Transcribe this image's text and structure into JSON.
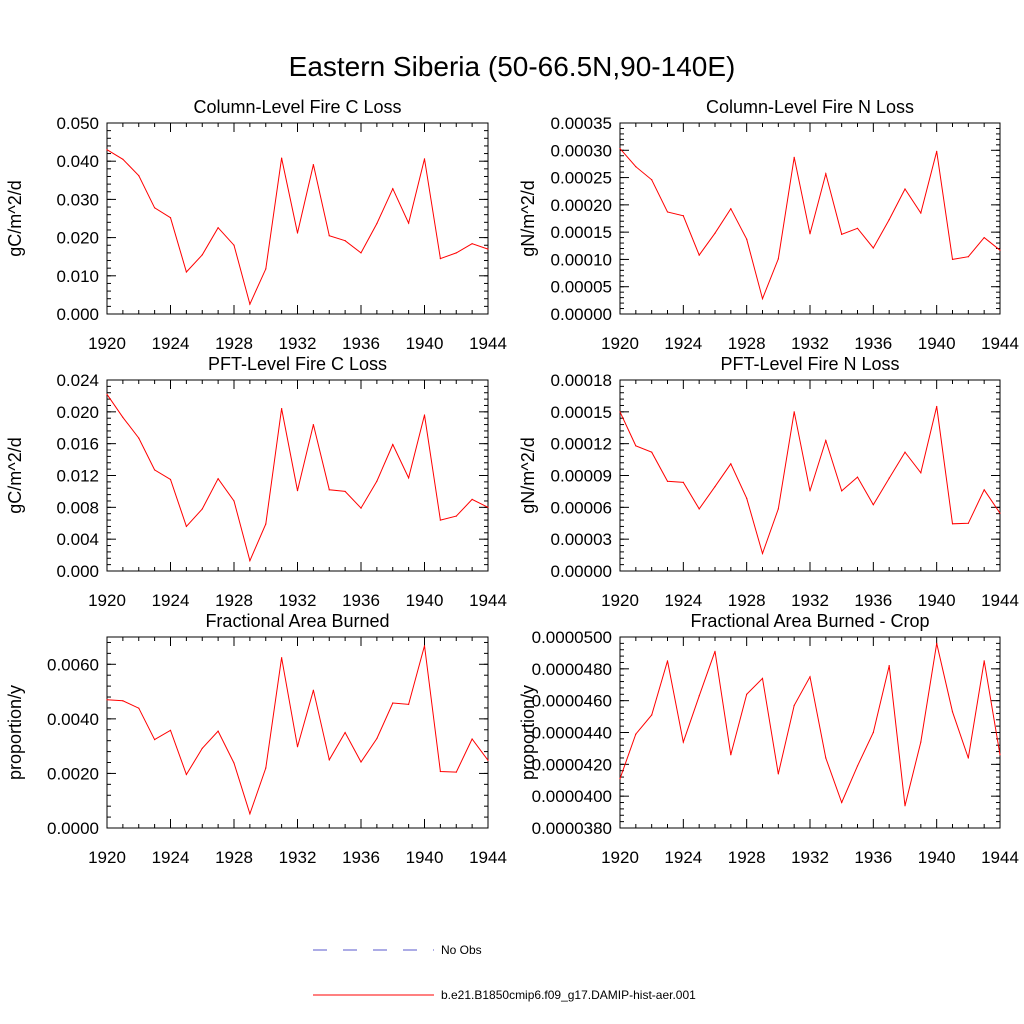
{
  "figure": {
    "title": "Eastern Siberia (50-66.5N,90-140E)"
  },
  "legend": {
    "placement": "bottom-center",
    "entries": [
      {
        "label": "No Obs",
        "color": "#5a5acd",
        "style": "dashed"
      },
      {
        "label": "b.e21.B1850cmip6.f09_g17.DAMIP-hist-aer.001",
        "color": "#ff0000",
        "style": "solid"
      }
    ]
  },
  "chart_data": [
    {
      "type": "line",
      "title": "Column-Level Fire C Loss",
      "ylabel": "gC/m^2/d",
      "xlim": [
        1920,
        1944
      ],
      "ylim": [
        0,
        0.05
      ],
      "xticks": [
        1920,
        1924,
        1928,
        1932,
        1936,
        1940,
        1944
      ],
      "yticks": [
        0,
        0.01,
        0.02,
        0.03,
        0.04,
        0.05
      ],
      "ytick_labels": [
        "0.000",
        "0.010",
        "0.020",
        "0.030",
        "0.040",
        "0.050"
      ],
      "color": "#ff0000",
      "x": [
        1920,
        1921,
        1922,
        1923,
        1924,
        1925,
        1926,
        1927,
        1928,
        1929,
        1930,
        1931,
        1932,
        1933,
        1934,
        1935,
        1936,
        1937,
        1938,
        1939,
        1940,
        1941,
        1942,
        1943,
        1944
      ],
      "values": [
        0.043,
        0.0405,
        0.0362,
        0.0278,
        0.0252,
        0.011,
        0.0155,
        0.0226,
        0.018,
        0.0026,
        0.0118,
        0.0408,
        0.0212,
        0.0391,
        0.0205,
        0.0192,
        0.016,
        0.0237,
        0.0328,
        0.0238,
        0.0406,
        0.0145,
        0.016,
        0.0184,
        0.017
      ]
    },
    {
      "type": "line",
      "title": "Column-Level Fire N Loss",
      "ylabel": "gN/m^2/d",
      "xlim": [
        1920,
        1944
      ],
      "ylim": [
        0,
        0.00035
      ],
      "xticks": [
        1920,
        1924,
        1928,
        1932,
        1936,
        1940,
        1944
      ],
      "yticks": [
        0,
        5e-05,
        0.0001,
        0.00015,
        0.0002,
        0.00025,
        0.0003,
        0.00035
      ],
      "ytick_labels": [
        "0.00000",
        "0.00005",
        "0.00010",
        "0.00015",
        "0.00020",
        "0.00025",
        "0.00030",
        "0.00035"
      ],
      "color": "#ff0000",
      "x": [
        1920,
        1921,
        1922,
        1923,
        1924,
        1925,
        1926,
        1927,
        1928,
        1929,
        1930,
        1931,
        1932,
        1933,
        1934,
        1935,
        1936,
        1937,
        1938,
        1939,
        1940,
        1941,
        1942,
        1943,
        1944
      ],
      "values": [
        0.000303,
        0.00027,
        0.000246,
        0.000187,
        0.00018,
        0.000108,
        0.000148,
        0.000193,
        0.000137,
        2.8e-05,
        0.000101,
        0.000287,
        0.000147,
        0.000257,
        0.000146,
        0.000157,
        0.000121,
        0.000173,
        0.000229,
        0.000185,
        0.000298,
        0.0001,
        0.000105,
        0.00014,
        0.000117
      ]
    },
    {
      "type": "line",
      "title": "PFT-Level Fire C Loss",
      "ylabel": "gC/m^2/d",
      "xlim": [
        1920,
        1944
      ],
      "ylim": [
        0,
        0.024
      ],
      "xticks": [
        1920,
        1924,
        1928,
        1932,
        1936,
        1940,
        1944
      ],
      "yticks": [
        0,
        0.004,
        0.008,
        0.012,
        0.016,
        0.02,
        0.024
      ],
      "ytick_labels": [
        "0.000",
        "0.004",
        "0.008",
        "0.012",
        "0.016",
        "0.020",
        "0.024"
      ],
      "color": "#ff0000",
      "x": [
        1920,
        1921,
        1922,
        1923,
        1924,
        1925,
        1926,
        1927,
        1928,
        1929,
        1930,
        1931,
        1932,
        1933,
        1934,
        1935,
        1936,
        1937,
        1938,
        1939,
        1940,
        1941,
        1942,
        1943,
        1944
      ],
      "values": [
        0.0222,
        0.0193,
        0.0167,
        0.0127,
        0.0115,
        0.0056,
        0.0078,
        0.0116,
        0.0088,
        0.0013,
        0.0059,
        0.0204,
        0.0101,
        0.0184,
        0.0102,
        0.01,
        0.0079,
        0.0113,
        0.0159,
        0.0117,
        0.0196,
        0.0064,
        0.0069,
        0.009,
        0.008
      ]
    },
    {
      "type": "line",
      "title": "PFT-Level Fire N Loss",
      "ylabel": "gN/m^2/d",
      "xlim": [
        1920,
        1944
      ],
      "ylim": [
        0,
        0.00018
      ],
      "xticks": [
        1920,
        1924,
        1928,
        1932,
        1936,
        1940,
        1944
      ],
      "yticks": [
        0,
        3e-05,
        6e-05,
        9e-05,
        0.00012,
        0.00015,
        0.00018
      ],
      "ytick_labels": [
        "0.00000",
        "0.00003",
        "0.00006",
        "0.00009",
        "0.00012",
        "0.00015",
        "0.00018"
      ],
      "color": "#ff0000",
      "x": [
        1920,
        1921,
        1922,
        1923,
        1924,
        1925,
        1926,
        1927,
        1928,
        1929,
        1930,
        1931,
        1932,
        1933,
        1934,
        1935,
        1936,
        1937,
        1938,
        1939,
        1940,
        1941,
        1942,
        1943,
        1944
      ],
      "values": [
        0.00015,
        0.000118,
        0.000112,
        8.45e-05,
        8.35e-05,
        5.85e-05,
        7.95e-05,
        0.000101,
        6.85e-05,
        1.65e-05,
        5.85e-05,
        0.00015,
        7.55e-05,
        0.000123,
        7.55e-05,
        8.85e-05,
        6.25e-05,
        8.75e-05,
        0.000112,
        9.25e-05,
        0.000155,
        4.45e-05,
        4.5e-05,
        7.65e-05,
        5.45e-05
      ]
    },
    {
      "type": "line",
      "title": "Fractional Area Burned",
      "ylabel": "proportion/y",
      "xlim": [
        1920,
        1944
      ],
      "ylim": [
        0,
        0.007
      ],
      "xticks": [
        1920,
        1924,
        1928,
        1932,
        1936,
        1940,
        1944
      ],
      "yticks": [
        0,
        0.002,
        0.004,
        0.006
      ],
      "ytick_labels": [
        "0.0000",
        "0.0020",
        "0.0040",
        "0.0060"
      ],
      "color": "#ff0000",
      "x": [
        1920,
        1921,
        1922,
        1923,
        1924,
        1925,
        1926,
        1927,
        1928,
        1929,
        1930,
        1931,
        1932,
        1933,
        1934,
        1935,
        1936,
        1937,
        1938,
        1939,
        1940,
        1941,
        1942,
        1943,
        1944
      ],
      "values": [
        0.0047,
        0.00466,
        0.00439,
        0.00324,
        0.00358,
        0.00196,
        0.00292,
        0.00355,
        0.00238,
        0.00052,
        0.0022,
        0.00624,
        0.00298,
        0.00505,
        0.0025,
        0.0035,
        0.00242,
        0.00328,
        0.00458,
        0.00453,
        0.00668,
        0.00207,
        0.00205,
        0.00326,
        0.00248
      ]
    },
    {
      "type": "line",
      "title": "Fractional Area Burned - Crop",
      "ylabel": "proportion/y",
      "xlim": [
        1920,
        1944
      ],
      "ylim": [
        3.8e-05,
        5e-05
      ],
      "xticks": [
        1920,
        1924,
        1928,
        1932,
        1936,
        1940,
        1944
      ],
      "yticks": [
        3.8e-05,
        4e-05,
        4.2e-05,
        4.4e-05,
        4.6e-05,
        4.8e-05,
        5e-05
      ],
      "ytick_labels": [
        "0.0000380",
        "0.0000400",
        "0.0000420",
        "0.0000440",
        "0.0000460",
        "0.0000480",
        "0.0000500"
      ],
      "color": "#ff0000",
      "x": [
        1920,
        1921,
        1922,
        1923,
        1924,
        1925,
        1926,
        1927,
        1928,
        1929,
        1930,
        1931,
        1932,
        1933,
        1934,
        1935,
        1936,
        1937,
        1938,
        1939,
        1940,
        1941,
        1942,
        1943,
        1944
      ],
      "values": [
        4.11e-05,
        4.39e-05,
        4.51e-05,
        4.85e-05,
        4.34e-05,
        4.63e-05,
        4.91e-05,
        4.26e-05,
        4.64e-05,
        4.74e-05,
        4.14e-05,
        4.57e-05,
        4.75e-05,
        4.24e-05,
        3.96e-05,
        4.19e-05,
        4.4e-05,
        4.82e-05,
        3.94e-05,
        4.34e-05,
        4.96e-05,
        4.53e-05,
        4.24e-05,
        4.85e-05,
        4.26e-05
      ]
    }
  ]
}
